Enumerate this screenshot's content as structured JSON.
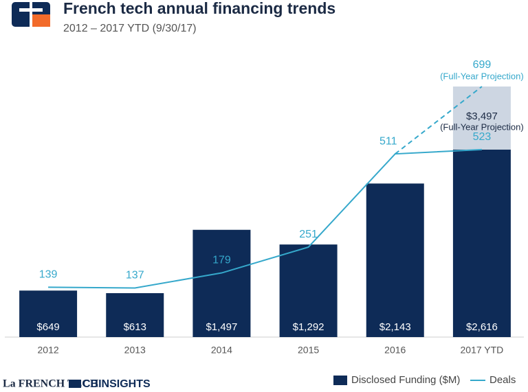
{
  "header": {
    "title": "French tech annual financing trends",
    "subtitle": "2012 – 2017 YTD (9/30/17)"
  },
  "chart_data": {
    "type": "bar",
    "categories": [
      "2012",
      "2013",
      "2014",
      "2015",
      "2016",
      "2017 YTD"
    ],
    "series": [
      {
        "name": "Disclosed Funding ($M)",
        "color": "#0e2b57",
        "values": [
          649,
          613,
          1497,
          1292,
          2143,
          2616
        ],
        "value_labels": [
          "$649",
          "$613",
          "$1,497",
          "$1,292",
          "$2,143",
          "$2,616"
        ]
      },
      {
        "name": "Deals",
        "type": "line",
        "color": "#35a8cb",
        "values": [
          139,
          137,
          179,
          251,
          511,
          523
        ]
      }
    ],
    "projection": {
      "funding": 3497,
      "funding_label": "$3,497",
      "deals": 699,
      "note": "(Full-Year Projection)",
      "color": "#cdd6e2"
    }
  },
  "footer": {
    "logos": [
      "La FRENCH TECH",
      "CBINSIGHTS"
    ]
  }
}
